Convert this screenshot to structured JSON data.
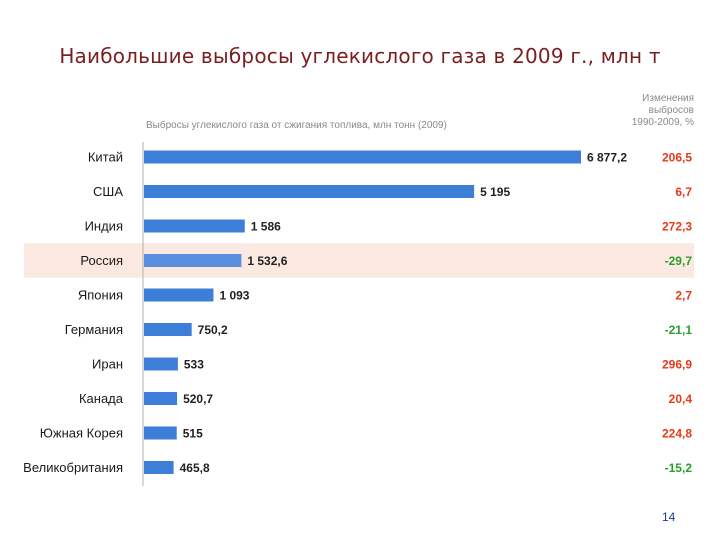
{
  "slide": {
    "title": "Наибольшие выбросы углекислого газа в 2009 г., млн т",
    "page_number": "14"
  },
  "colors": {
    "bar": "#3d7ed8",
    "bar_highlight": "#5b8ee0",
    "highlight_row": "#fbe9e1",
    "positive_change": "#e8391a",
    "negative_change": "#27a02c"
  },
  "chart_data": {
    "type": "bar",
    "orientation": "horizontal",
    "title": "Выбросы углекислого газа от сжигания топлива, млн тонн (2009)",
    "change_header": [
      "Изменения",
      "выбросов",
      "1990-2009, %"
    ],
    "categories": [
      "Китай",
      "США",
      "Индия",
      "Россия",
      "Япония",
      "Германия",
      "Иран",
      "Канада",
      "Южная Корея",
      "Великобритания"
    ],
    "values": [
      6877.2,
      5195,
      1586,
      1532.6,
      1093,
      750.2,
      533,
      520.7,
      515,
      465.8
    ],
    "value_labels": [
      "6 877,2",
      "5 195",
      "1 586",
      "1 532,6",
      "1 093",
      "750,2",
      "533",
      "520,7",
      "515",
      "465,8"
    ],
    "changes": [
      206.5,
      6.7,
      272.3,
      -29.7,
      2.7,
      -21.1,
      296.9,
      20.4,
      224.8,
      -15.2
    ],
    "change_labels": [
      "206,5",
      "6,7",
      "272,3",
      "-29,7",
      "2,7",
      "-21,1",
      "296,9",
      "20,4",
      "224,8",
      "-15,2"
    ],
    "highlighted_category": "Россия",
    "xlim": [
      0,
      6877.2
    ],
    "grid": false,
    "legend": "none"
  }
}
